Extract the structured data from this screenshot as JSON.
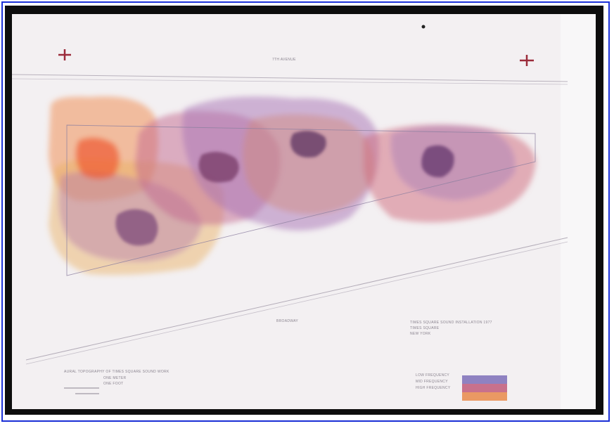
{
  "drawing": {
    "top_street_label": "7TH AVENUE",
    "diagonal_street_label": "BROADWAY",
    "title_block": {
      "line1": "TIMES SQUARE SOUND INSTALLATION 1977",
      "line2": "TIMES SQUARE",
      "line3": "NEW YORK"
    },
    "caption": {
      "line1": "AURAL TOPOGRAPHY OF TIMES SQUARE SOUND WORK",
      "line2": "ONE METER",
      "line3": "ONE FOOT"
    },
    "legend": [
      {
        "label": "LOW FREQUENCY",
        "color": "#7d6fb8"
      },
      {
        "label": "MID FREQUENCY",
        "color": "#c05a7a"
      },
      {
        "label": "HIGH FREQUENCY",
        "color": "#e88a4a"
      }
    ]
  },
  "colors": {
    "border": "#1a2fd6",
    "mount": "#0d0d0d",
    "paper": "#f3f0f2"
  }
}
